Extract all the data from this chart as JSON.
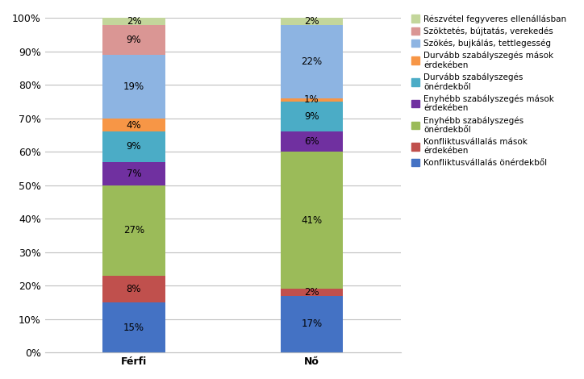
{
  "categories": [
    "Férfi",
    "Nő"
  ],
  "series": [
    {
      "label": "Konfliktusvállalás önérdekből",
      "color": "#4472C4",
      "values": [
        15,
        17
      ]
    },
    {
      "label": "Konfliktusvállalás mások\nérdekében",
      "color": "#C0504D",
      "values": [
        8,
        2
      ]
    },
    {
      "label": "Enyhébb szabályszegés\nönérdekből",
      "color": "#9BBB59",
      "values": [
        27,
        41
      ]
    },
    {
      "label": "Enyhébb szabályszegés mások\nérdekében",
      "color": "#7030A0",
      "values": [
        7,
        6
      ]
    },
    {
      "label": "Durvább szabályszegés\nönérdekből",
      "color": "#4BACC6",
      "values": [
        9,
        9
      ]
    },
    {
      "label": "Durvább szabályszegés mások\nérdekében",
      "color": "#F79646",
      "values": [
        4,
        1
      ]
    },
    {
      "label": "Szökés, bujkálás, tettlegesség",
      "color": "#8DB4E2",
      "values": [
        19,
        22
      ]
    },
    {
      "label": "Szöktetés, bújtatás, verekedés",
      "color": "#DA9694",
      "values": [
        9,
        0
      ]
    },
    {
      "label": "Részvétel fegyveres ellenállásban",
      "color": "#C3D69B",
      "values": [
        2,
        2
      ]
    }
  ],
  "ylim": [
    0,
    1.0
  ],
  "yticks": [
    0,
    0.1,
    0.2,
    0.3,
    0.4,
    0.5,
    0.6,
    0.7,
    0.8,
    0.9,
    1.0
  ],
  "yticklabels": [
    "0%",
    "10%",
    "20%",
    "30%",
    "40%",
    "50%",
    "60%",
    "70%",
    "80%",
    "90%",
    "100%"
  ],
  "figsize": [
    7.24,
    4.7
  ],
  "dpi": 100,
  "bar_width": 0.35,
  "legend_fontsize": 7.5,
  "tick_fontsize": 9,
  "label_fontsize": 8.5
}
